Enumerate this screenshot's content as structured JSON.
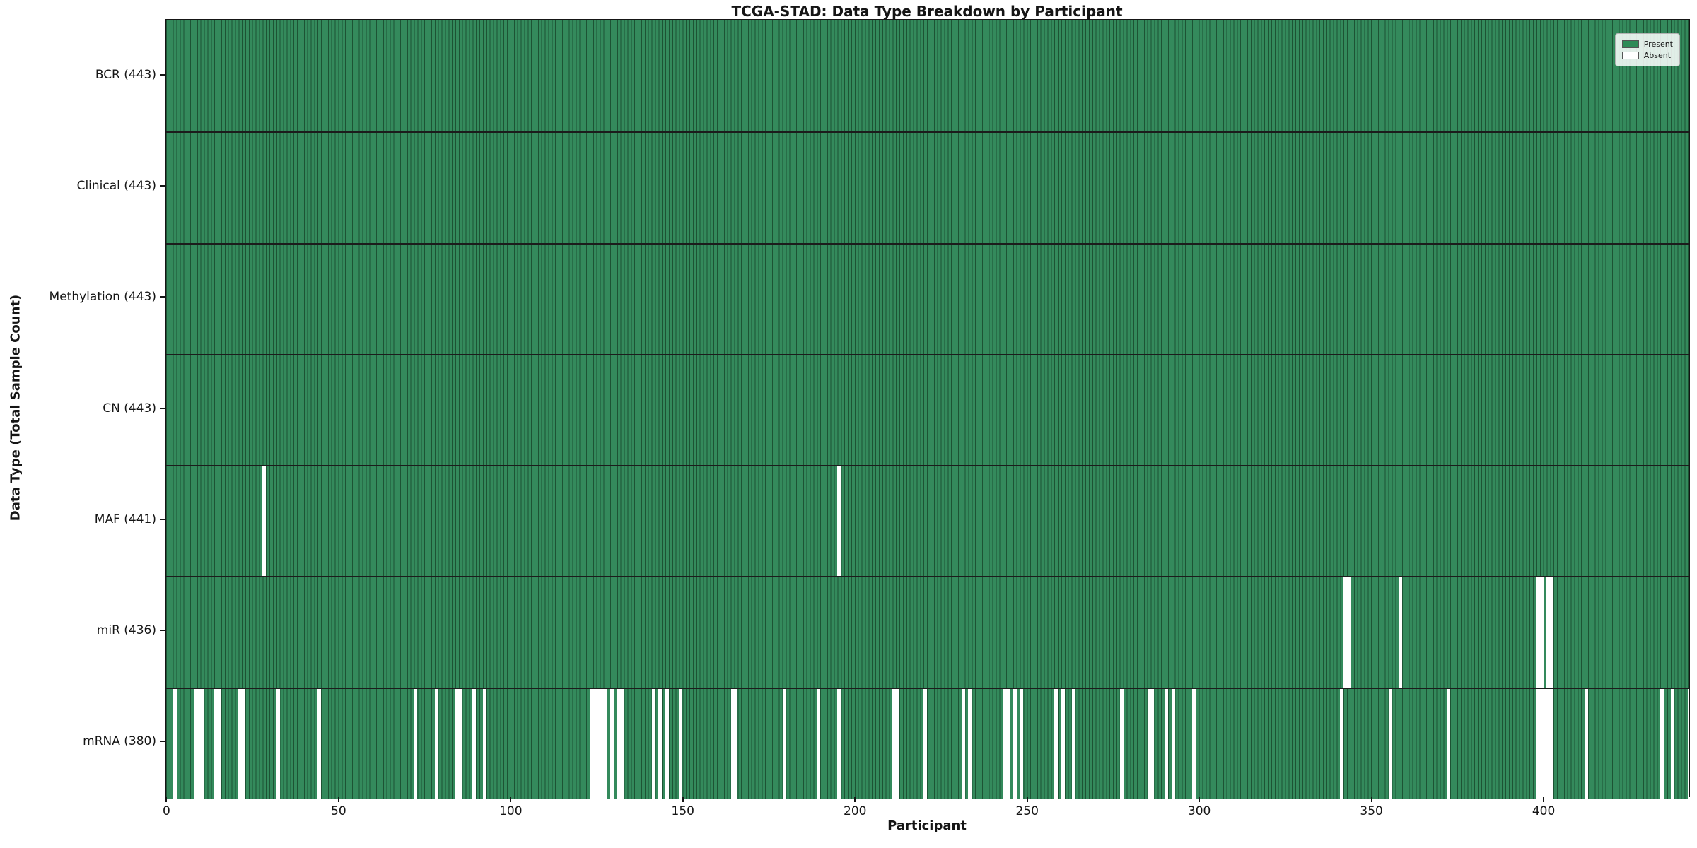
{
  "title": "TCGA-STAD: Data Type Breakdown by Participant",
  "chart_data": {
    "type": "heatmap",
    "title": "TCGA-STAD: Data Type Breakdown by Participant",
    "xlabel": "Participant",
    "ylabel": "Data Type (Total Sample Count)",
    "x_ticks": [
      0,
      50,
      100,
      150,
      200,
      250,
      300,
      350,
      400
    ],
    "x_range": [
      -0.5,
      442.5
    ],
    "n_participants": 443,
    "grid": false,
    "legend_position": "upper right",
    "legend": [
      {
        "label": "Present",
        "color": "#2e8b57"
      },
      {
        "label": "Absent",
        "color": "#ffffff"
      }
    ],
    "rows": [
      {
        "label": "BCR (443)",
        "data_type": "BCR",
        "present_count": 443,
        "absent_participants": []
      },
      {
        "label": "Clinical (443)",
        "data_type": "Clinical",
        "present_count": 443,
        "absent_participants": []
      },
      {
        "label": "Methylation (443)",
        "data_type": "Methylation",
        "present_count": 443,
        "absent_participants": []
      },
      {
        "label": "CN (443)",
        "data_type": "CN",
        "present_count": 443,
        "absent_participants": []
      },
      {
        "label": "MAF (441)",
        "data_type": "MAF",
        "present_count": 441,
        "absent_participants": [
          28,
          195
        ]
      },
      {
        "label": "miR (436)",
        "data_type": "miR",
        "present_count": 436,
        "absent_participants": [
          342,
          343,
          358,
          398,
          399,
          401,
          402
        ]
      },
      {
        "label": "mRNA (380)",
        "data_type": "mRNA",
        "present_count": 380,
        "absent_participants": [
          2,
          8,
          9,
          10,
          14,
          15,
          21,
          22,
          32,
          44,
          72,
          78,
          84,
          85,
          89,
          92,
          123,
          124,
          125,
          126,
          127,
          129,
          131,
          132,
          141,
          143,
          145,
          149,
          164,
          165,
          179,
          189,
          195,
          211,
          212,
          220,
          231,
          233,
          243,
          244,
          246,
          248,
          258,
          260,
          263,
          277,
          285,
          286,
          290,
          292,
          298,
          341,
          355,
          372,
          398,
          399,
          400,
          401,
          402,
          412,
          434,
          437,
          442
        ]
      }
    ],
    "colors": {
      "present_fill": "#348a5c",
      "bar_edge": "#1d5334",
      "absent_fill": "#ffffff",
      "separator": "#1c1c1c",
      "spine": "#151515"
    }
  }
}
